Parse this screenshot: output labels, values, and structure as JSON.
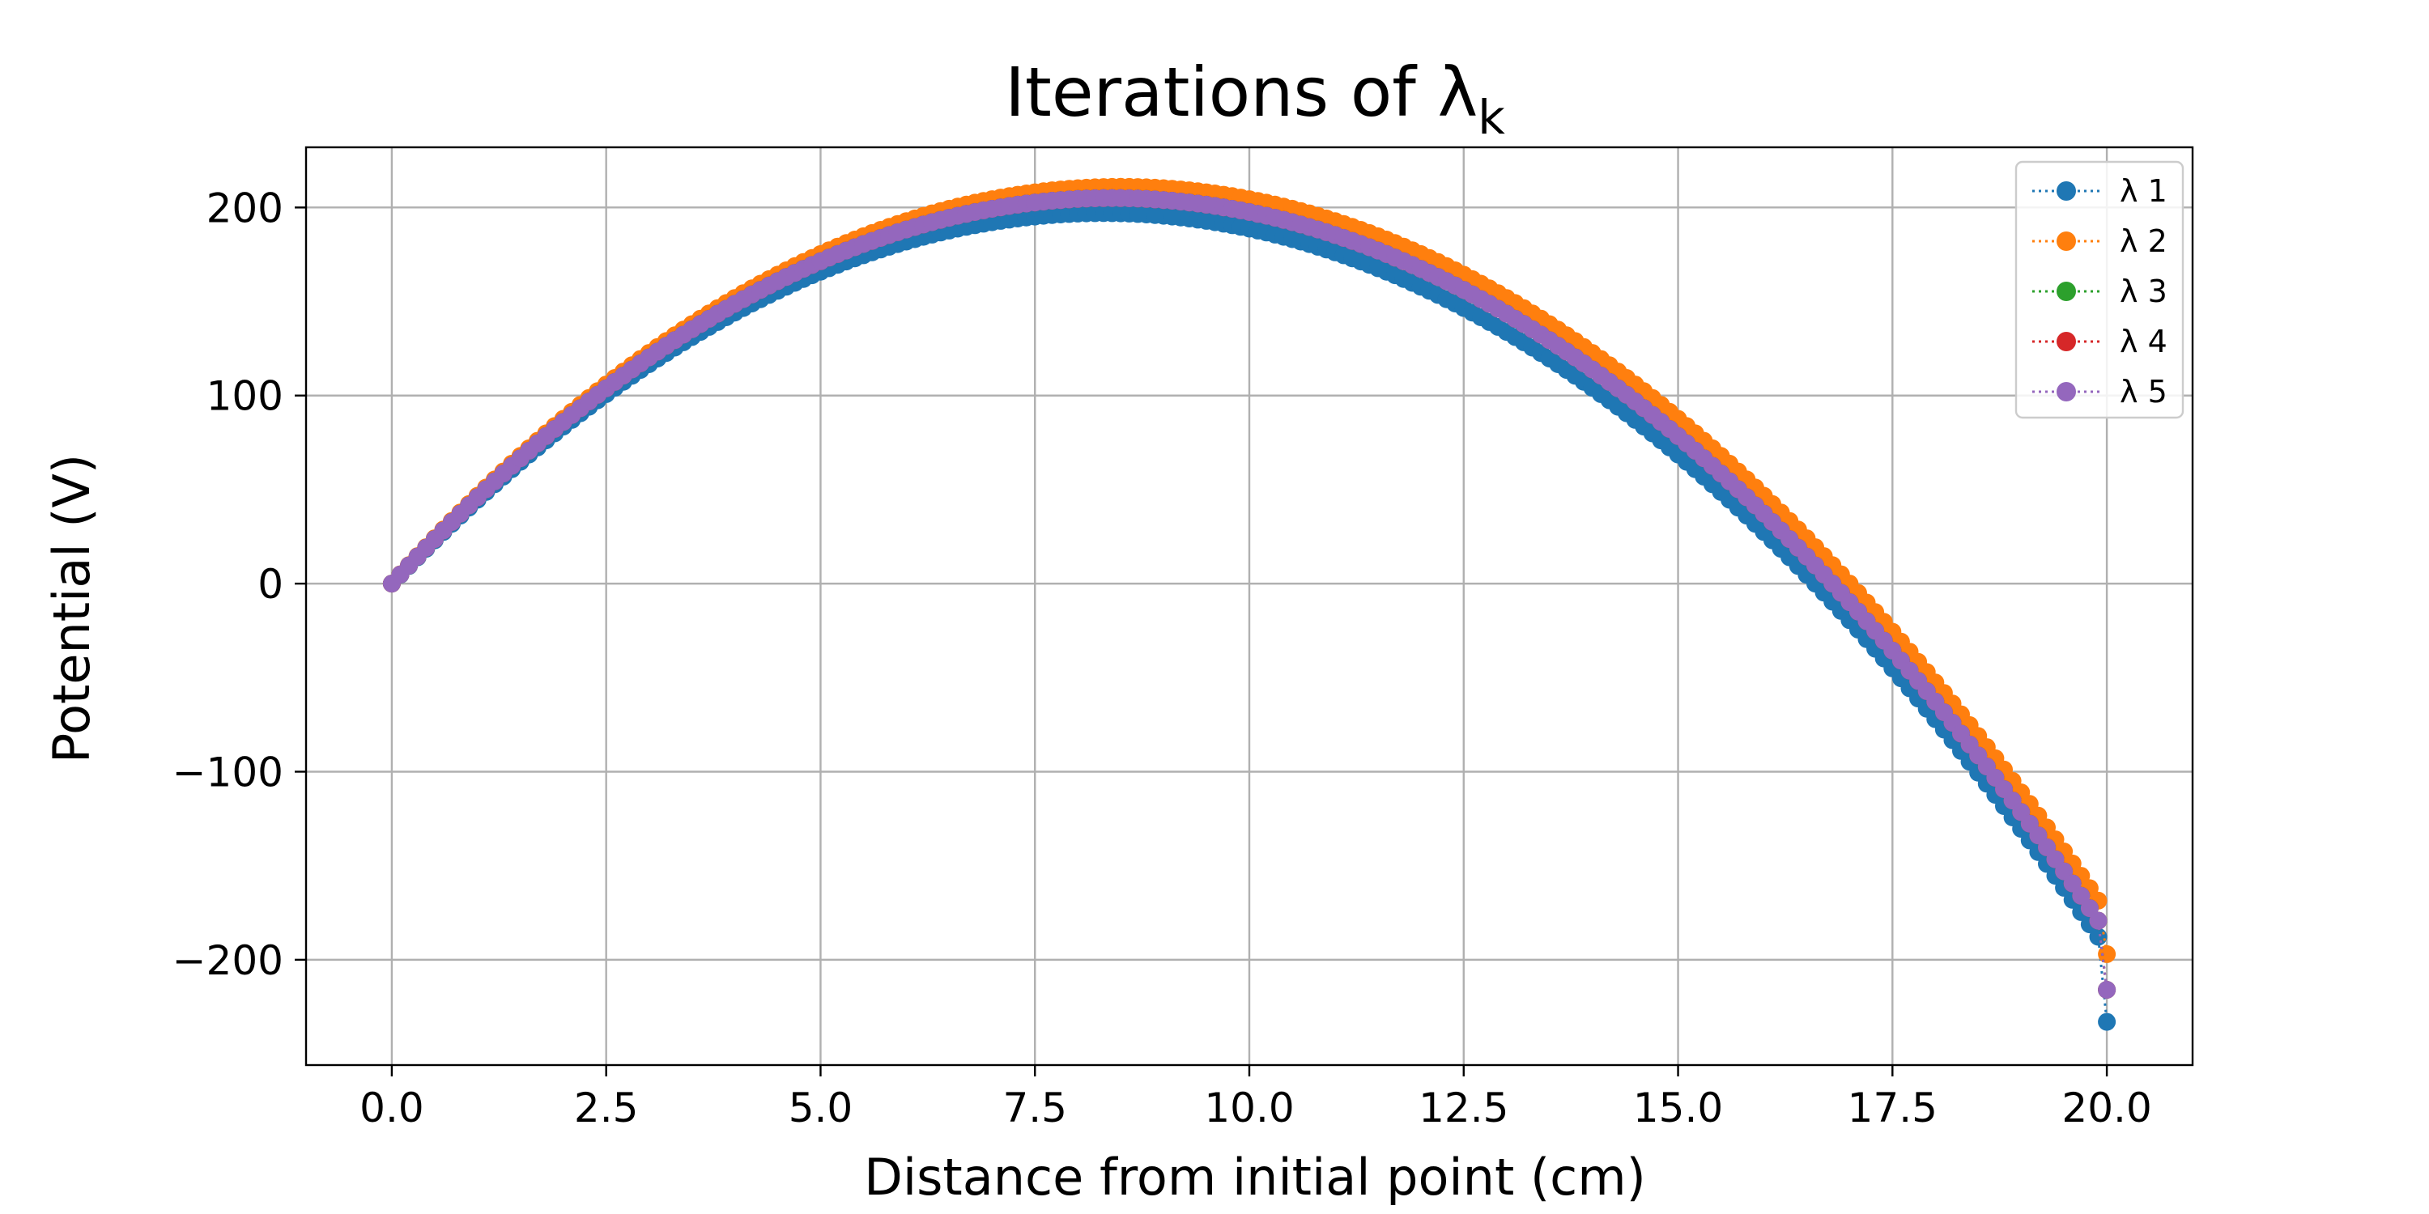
{
  "chart_data": {
    "type": "scatter",
    "title": "Iterations of λ",
    "title_subscript": "k",
    "xlabel": "Distance from initial point (cm)",
    "ylabel": "Potential (V)",
    "xlim": [
      -1.0,
      21.0
    ],
    "ylim": [
      -256,
      232
    ],
    "x_ticks": [
      0.0,
      2.5,
      5.0,
      7.5,
      10.0,
      12.5,
      15.0,
      17.5,
      20.0
    ],
    "x_tick_labels": [
      "0.0",
      "2.5",
      "5.0",
      "7.5",
      "10.0",
      "12.5",
      "15.0",
      "17.5",
      "20.0"
    ],
    "y_ticks": [
      200,
      100,
      0,
      -100,
      -200
    ],
    "y_tick_labels": [
      "200",
      "100",
      "0",
      "−100",
      "−200"
    ],
    "grid": true,
    "legend_position": "top-right",
    "x": {
      "start": 0.0,
      "end": 20.0,
      "step": 0.1
    },
    "series": [
      {
        "name": "λ 1",
        "color": "#1f77b4",
        "marker": "circle",
        "linestyle": "dotted",
        "y_start": 0,
        "y_max": 197,
        "x_at_max": 8.3,
        "y_end": -233
      },
      {
        "name": "λ 2",
        "color": "#ff7f0e",
        "marker": "circle",
        "linestyle": "dotted",
        "y_start": 0,
        "y_max": 211,
        "x_at_max": 8.5,
        "y_end": -197
      },
      {
        "name": "λ 3",
        "color": "#2ca02c",
        "marker": "circle",
        "linestyle": "dotted",
        "y_start": 0,
        "y_max": 205,
        "x_at_max": 8.4,
        "y_end": -216
      },
      {
        "name": "λ 4",
        "color": "#d62728",
        "marker": "circle",
        "linestyle": "dotted",
        "y_start": 0,
        "y_max": 205,
        "x_at_max": 8.4,
        "y_end": -216
      },
      {
        "name": "λ 5",
        "color": "#9467bd",
        "marker": "circle",
        "linestyle": "dotted",
        "y_start": 0,
        "y_max": 205,
        "x_at_max": 8.4,
        "y_end": -216
      }
    ]
  }
}
